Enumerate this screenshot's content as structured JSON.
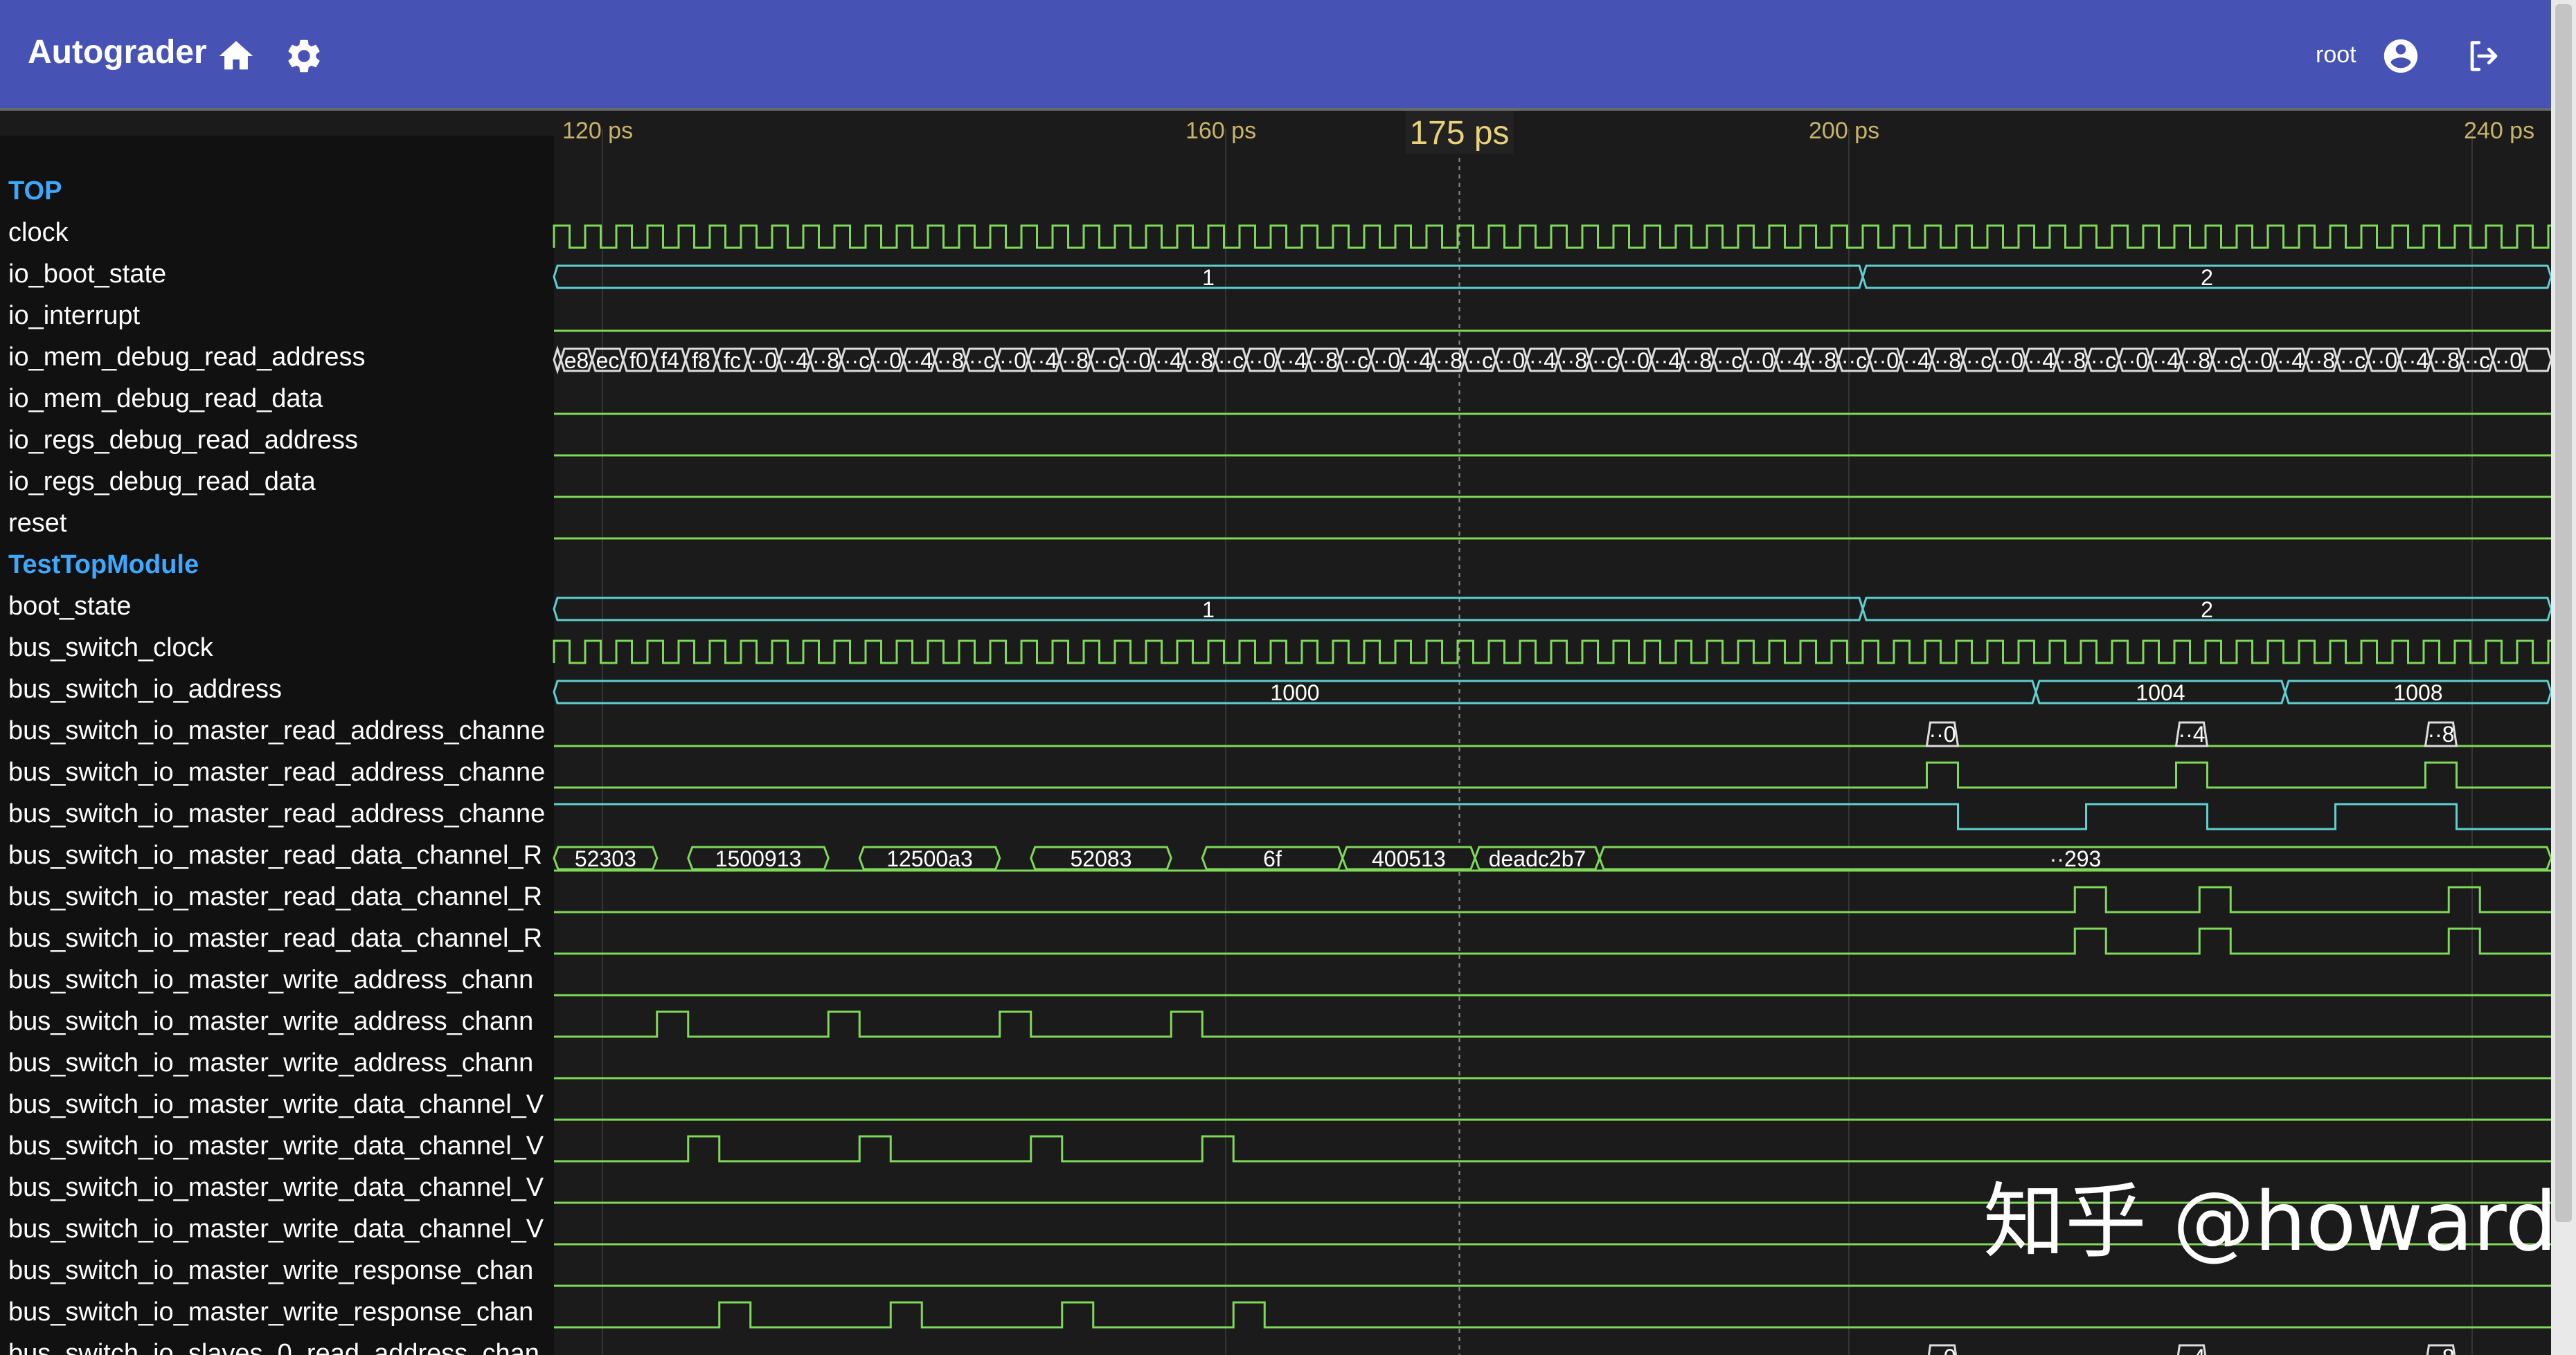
{
  "app": {
    "title": "Autograder",
    "username": "root",
    "icons": [
      "home-icon",
      "gear-icon",
      "account-circle-icon",
      "logout-icon"
    ]
  },
  "timeline": {
    "ticks": [
      "120 ps",
      "160 ps",
      "200 ps",
      "240 ps"
    ],
    "cursor_label": "175 ps"
  },
  "signals": [
    {
      "name": "TOP",
      "group": true
    },
    {
      "name": "clock"
    },
    {
      "name": "io_boot_state"
    },
    {
      "name": "io_interrupt"
    },
    {
      "name": "io_mem_debug_read_address"
    },
    {
      "name": "io_mem_debug_read_data"
    },
    {
      "name": "io_regs_debug_read_address"
    },
    {
      "name": "io_regs_debug_read_data"
    },
    {
      "name": "reset"
    },
    {
      "name": "TestTopModule",
      "group": true
    },
    {
      "name": "boot_state"
    },
    {
      "name": "bus_switch_clock"
    },
    {
      "name": "bus_switch_io_address"
    },
    {
      "name": "bus_switch_io_master_read_address_channe"
    },
    {
      "name": "bus_switch_io_master_read_address_channe"
    },
    {
      "name": "bus_switch_io_master_read_address_channe"
    },
    {
      "name": "bus_switch_io_master_read_data_channel_R"
    },
    {
      "name": "bus_switch_io_master_read_data_channel_R"
    },
    {
      "name": "bus_switch_io_master_read_data_channel_R"
    },
    {
      "name": "bus_switch_io_master_write_address_chann"
    },
    {
      "name": "bus_switch_io_master_write_address_chann"
    },
    {
      "name": "bus_switch_io_master_write_address_chann"
    },
    {
      "name": "bus_switch_io_master_write_data_channel_V"
    },
    {
      "name": "bus_switch_io_master_write_data_channel_V"
    },
    {
      "name": "bus_switch_io_master_write_data_channel_V"
    },
    {
      "name": "bus_switch_io_master_write_data_channel_V"
    },
    {
      "name": "bus_switch_io_master_write_response_chan"
    },
    {
      "name": "bus_switch_io_master_write_response_chan"
    },
    {
      "name": "bus_switch_io_slaves_0_read_address_chan"
    }
  ],
  "bus_values": {
    "io_boot_state": [
      "1",
      "2"
    ],
    "boot_state": [
      "1",
      "2"
    ],
    "bus_switch_io_address": [
      "1000",
      "1004",
      "1008"
    ],
    "read_address": [
      "··0",
      "··4",
      "··8"
    ],
    "read_data": [
      "52303",
      "1500913",
      "12500a3",
      "52083",
      "6f",
      "400513",
      "deadc2b7",
      "··293"
    ],
    "mem_debug_read_address": [
      "e8",
      "ec",
      "f0",
      "f4",
      "f8",
      "fc",
      "··0",
      "··4",
      "··8",
      "··c"
    ]
  },
  "watermark": {
    "text": "知乎 @howard"
  },
  "colors": {
    "appbar": "#4652b4",
    "wave_bg": "#1b1b1b",
    "name_panel": "#111111",
    "trace": "#7ed957",
    "bus_trace": "#5fcfcf",
    "group_label": "#3ea8ff",
    "tick_label": "#c8b46a"
  }
}
